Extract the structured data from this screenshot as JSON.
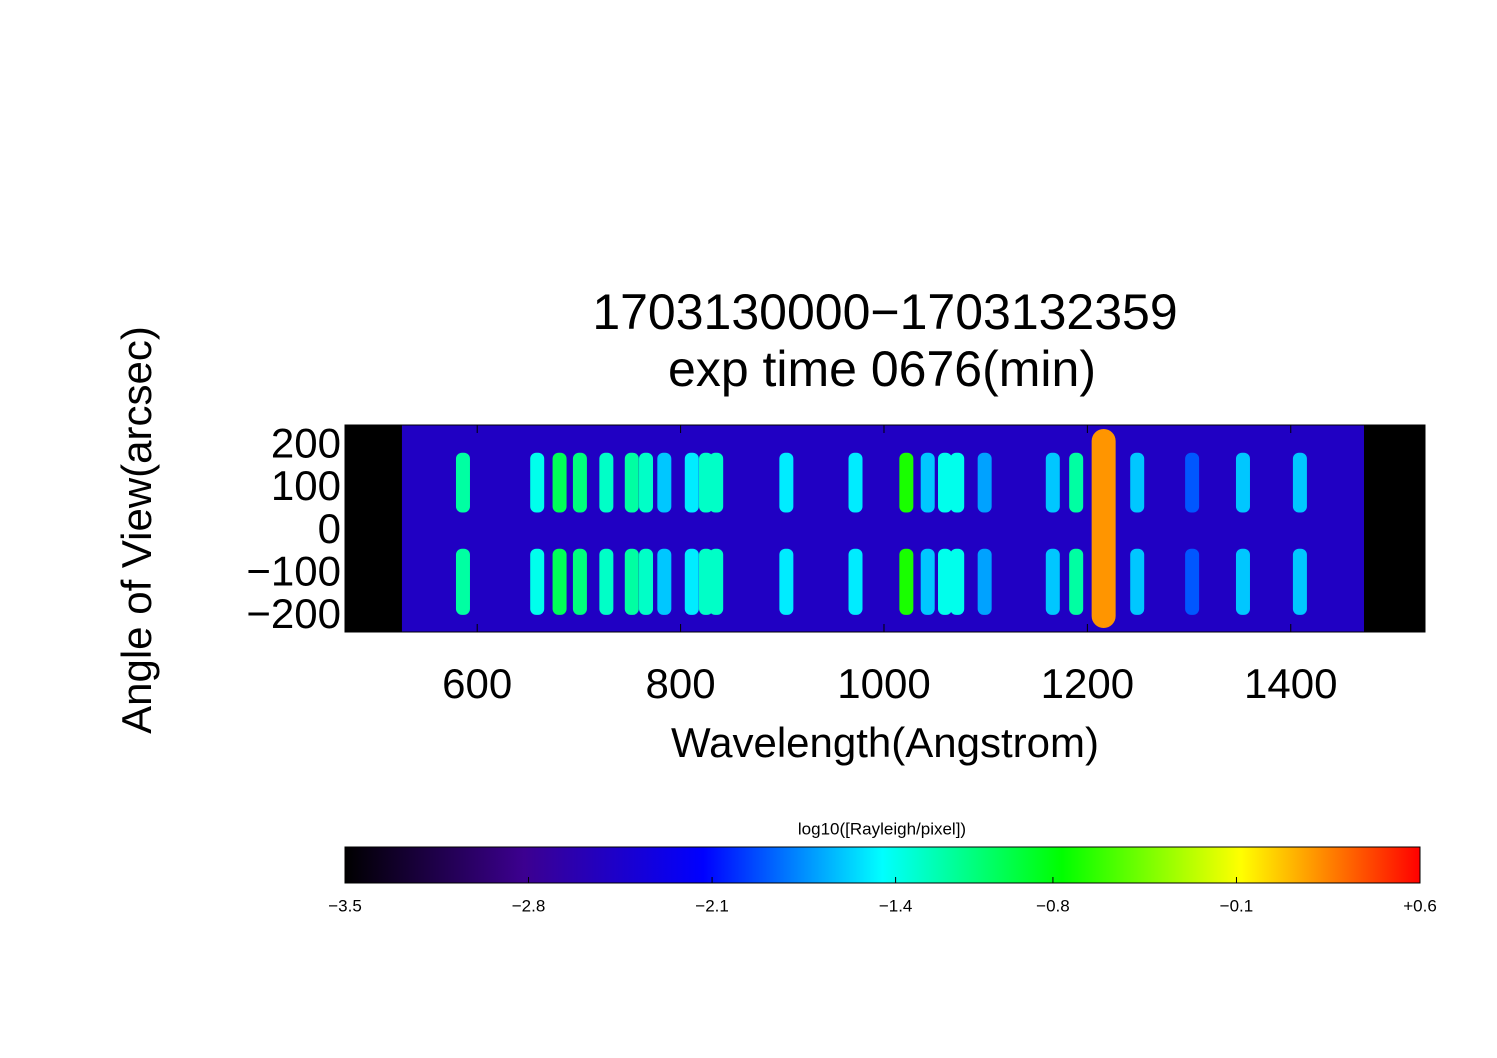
{
  "chart_data": {
    "type": "spectrogram",
    "title": "1703130000−1703132359",
    "subtitle": "exp time 0676(min)",
    "xlabel": "Wavelength(Angstrom)",
    "ylabel": "Angle of View(arcsec)",
    "xlim": [
      470,
      1532
    ],
    "ylim": [
      -235,
      250
    ],
    "xticks": [
      600,
      800,
      1000,
      1200,
      1400
    ],
    "yticks": [
      200,
      100,
      0,
      {
        "value": -100,
        "label": "−100"
      },
      {
        "value": -200,
        "label": "−200"
      }
    ],
    "image_xlim": [
      526,
      1472
    ],
    "background": -2.5,
    "lines": [
      {
        "wavelength": 586,
        "value": -1.2
      },
      {
        "wavelength": 659,
        "value": -1.4
      },
      {
        "wavelength": 681,
        "value": -1.0
      },
      {
        "wavelength": 701,
        "value": -1.1
      },
      {
        "wavelength": 727,
        "value": -1.3
      },
      {
        "wavelength": 752,
        "value": -1.2
      },
      {
        "wavelength": 766,
        "value": -1.3
      },
      {
        "wavelength": 784,
        "value": -1.6
      },
      {
        "wavelength": 811,
        "value": -1.5
      },
      {
        "wavelength": 825,
        "value": -1.3
      },
      {
        "wavelength": 835,
        "value": -1.3
      },
      {
        "wavelength": 904,
        "value": -1.5
      },
      {
        "wavelength": 972,
        "value": -1.5
      },
      {
        "wavelength": 1022,
        "value": -0.7
      },
      {
        "wavelength": 1043,
        "value": -1.6
      },
      {
        "wavelength": 1060,
        "value": -1.4
      },
      {
        "wavelength": 1072,
        "value": -1.4
      },
      {
        "wavelength": 1099,
        "value": -1.7
      },
      {
        "wavelength": 1166,
        "value": -1.6
      },
      {
        "wavelength": 1189,
        "value": -1.2
      },
      {
        "wavelength": 1216,
        "value": 0.2
      },
      {
        "wavelength": 1249,
        "value": -1.6
      },
      {
        "wavelength": 1303,
        "value": -1.9
      },
      {
        "wavelength": 1353,
        "value": -1.6
      },
      {
        "wavelength": 1409,
        "value": -1.6
      }
    ],
    "colorbar_label": "log10([Rayleigh/pixel])",
    "clim": [
      -3.5,
      0.6
    ],
    "colorbar_ticks": [
      {
        "value": -3.5,
        "label": "−3.5"
      },
      {
        "value": -2.8,
        "label": "−2.8"
      },
      {
        "value": -2.1,
        "label": "−2.1"
      },
      {
        "value": -1.4,
        "label": "−1.4"
      },
      {
        "value": -0.8,
        "label": "−0.8"
      },
      {
        "value": -0.1,
        "label": "−0.1"
      },
      {
        "value": 0.6,
        "label": "+0.6"
      }
    ],
    "colormap": [
      "#000000",
      "#3c0090",
      "#0000ff",
      "#00ffff",
      "#00ff00",
      "#ffff00",
      "#ff0000"
    ]
  }
}
